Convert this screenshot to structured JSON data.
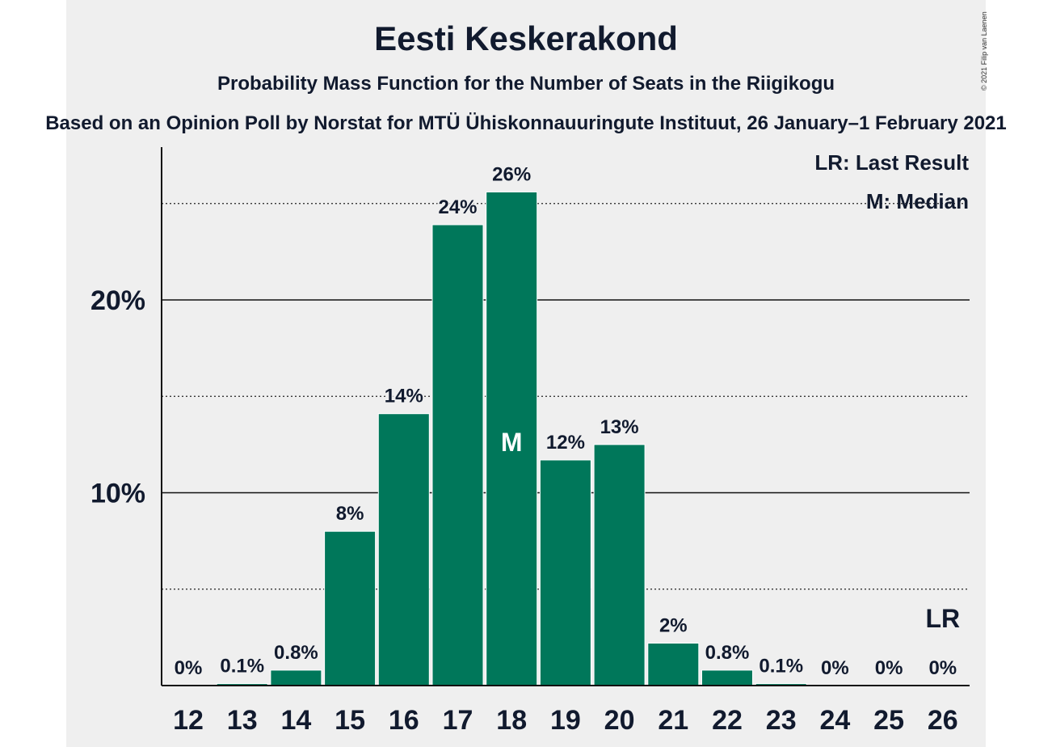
{
  "chart_data": {
    "type": "bar",
    "title": "Eesti Keskerakond",
    "subtitle": "Probability Mass Function for the Number of Seats in the Riigikogu",
    "source": "Based on an Opinion Poll by Norstat for MTÜ Ühiskonnauuringute Instituut, 26 January–1 February 2021",
    "copyright": "© 2021 Filip van Laenen",
    "categories": [
      "12",
      "13",
      "14",
      "15",
      "16",
      "17",
      "18",
      "19",
      "20",
      "21",
      "22",
      "23",
      "24",
      "25",
      "26"
    ],
    "values": [
      0,
      0.1,
      0.8,
      8.0,
      14.1,
      23.9,
      25.6,
      11.7,
      12.5,
      2.2,
      0.8,
      0.1,
      0,
      0,
      0
    ],
    "value_labels": [
      "0%",
      "0.1%",
      "0.8%",
      "8%",
      "14%",
      "24%",
      "26%",
      "12%",
      "13%",
      "2%",
      "0.8%",
      "0.1%",
      "0%",
      "0%",
      "0%"
    ],
    "ylim": [
      0,
      28
    ],
    "y_ticks": [
      {
        "value": 10,
        "label": "10%"
      },
      {
        "value": 20,
        "label": "20%"
      }
    ],
    "minor_gridlines": [
      5,
      15,
      25
    ],
    "median_category": "18",
    "median_marker": "M",
    "last_result_category": "26",
    "last_result_marker": "LR",
    "legend": [
      "LR: Last Result",
      "M: Median"
    ],
    "legend_placement": "top-right",
    "bar_color": "#00775a"
  }
}
